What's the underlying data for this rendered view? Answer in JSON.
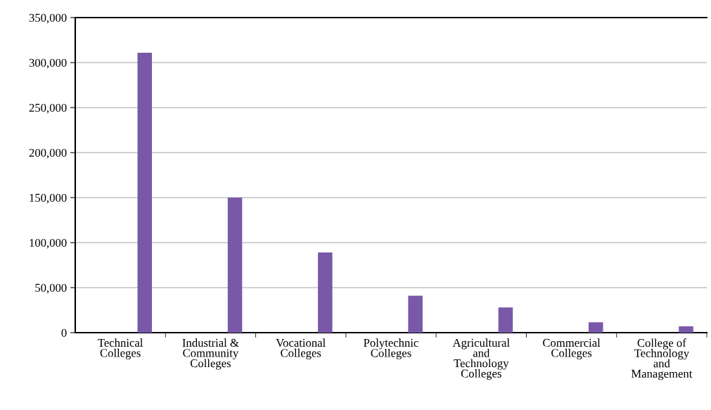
{
  "chart_data": {
    "type": "bar",
    "categories": [
      "Technical\nColleges",
      "Industrial &\nCommunity\nColleges",
      "Vocational\nColleges",
      "Polytechnic\nColleges",
      "Agricultural\nand\nTechnology\nColleges",
      "Commercial\nColleges",
      "College of\nTechnology\nand\nManagement"
    ],
    "values": [
      311000,
      150000,
      89000,
      41000,
      28000,
      11500,
      7000
    ],
    "color": "#7a58a8",
    "ylim": [
      0,
      350000
    ],
    "yticks": [
      {
        "value": 0,
        "label": "0"
      },
      {
        "value": 50000,
        "label": "50,000"
      },
      {
        "value": 100000,
        "label": "100,000"
      },
      {
        "value": 150000,
        "label": "150,000"
      },
      {
        "value": 200000,
        "label": "200,000"
      },
      {
        "value": 250000,
        "label": "250,000"
      },
      {
        "value": 300000,
        "label": "300,000"
      },
      {
        "value": 350000,
        "label": "350,000"
      }
    ],
    "grid": "y"
  }
}
